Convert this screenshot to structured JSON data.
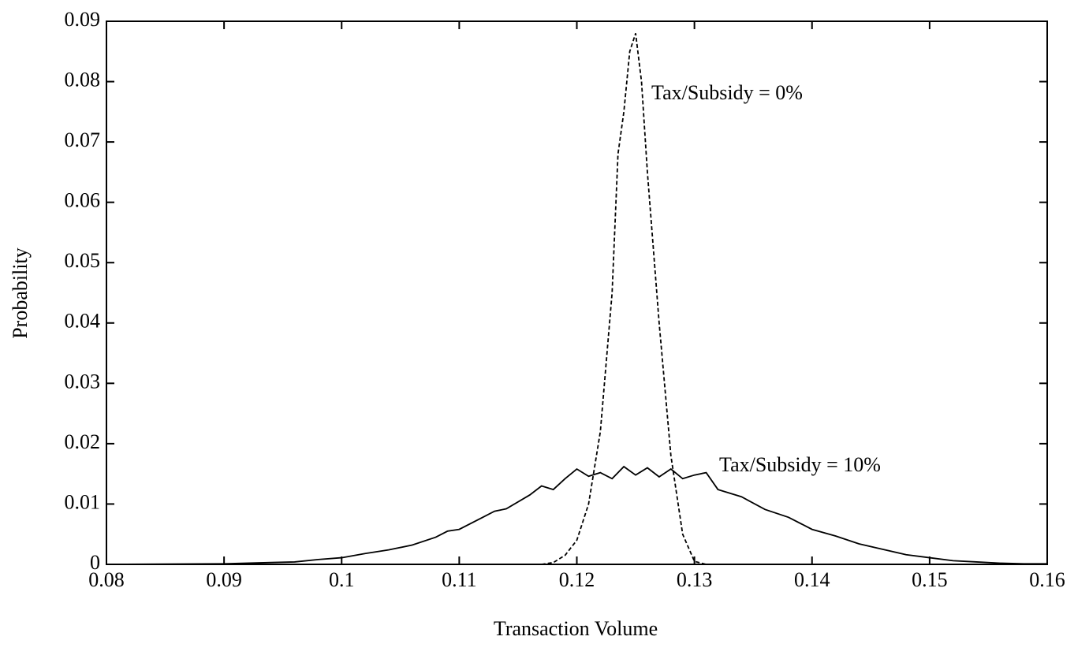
{
  "chart_data": {
    "type": "line",
    "x_label": "Transaction Volume",
    "y_label": "Probability",
    "annotations": [
      "Tax/Subsidy = 0%",
      "Tax/Subsidy = 10%"
    ],
    "xlim": [
      0.08,
      0.16
    ],
    "xticks": [
      0.08,
      0.09,
      0.1,
      0.11,
      0.12,
      0.13,
      0.14,
      0.15,
      0.16
    ],
    "ylim": [
      0,
      0.09
    ],
    "yticks": [
      0,
      0.01,
      0.02,
      0.03,
      0.04,
      0.05,
      0.06,
      0.07,
      0.08,
      0.09
    ],
    "series": [
      {
        "name": "Tax/Subsidy = 0%",
        "color": "#000000",
        "dashed": true,
        "x": [
          0.117,
          0.118,
          0.119,
          0.12,
          0.121,
          0.122,
          0.123,
          0.1235,
          0.124,
          0.1245,
          0.125,
          0.1255,
          0.126,
          0.127,
          0.128,
          0.129,
          0.13,
          0.131
        ],
        "values": [
          0,
          0.0003,
          0.0015,
          0.004,
          0.01,
          0.022,
          0.045,
          0.068,
          0.075,
          0.085,
          0.088,
          0.08,
          0.065,
          0.04,
          0.018,
          0.005,
          0.0005,
          0
        ]
      },
      {
        "name": "Tax/Subsidy = 10%",
        "color": "#000000",
        "dashed": false,
        "x": [
          0.08,
          0.09,
          0.094,
          0.096,
          0.098,
          0.1,
          0.102,
          0.104,
          0.106,
          0.108,
          0.109,
          0.11,
          0.112,
          0.113,
          0.114,
          0.116,
          0.117,
          0.118,
          0.119,
          0.12,
          0.121,
          0.122,
          0.123,
          0.124,
          0.125,
          0.126,
          0.127,
          0.128,
          0.129,
          0.13,
          0.131,
          0.132,
          0.134,
          0.136,
          0.138,
          0.14,
          0.142,
          0.144,
          0.146,
          0.148,
          0.15,
          0.152,
          0.154,
          0.156,
          0.158,
          0.16
        ],
        "values": [
          0,
          0.0001,
          0.0003,
          0.0004,
          0.0008,
          0.0011,
          0.0018,
          0.0024,
          0.0032,
          0.0045,
          0.0055,
          0.0058,
          0.0078,
          0.0088,
          0.0092,
          0.0115,
          0.013,
          0.0124,
          0.0142,
          0.0158,
          0.0146,
          0.0152,
          0.0142,
          0.0162,
          0.0148,
          0.016,
          0.0145,
          0.0158,
          0.0142,
          0.0148,
          0.0152,
          0.0124,
          0.0112,
          0.0091,
          0.0078,
          0.0058,
          0.0047,
          0.0034,
          0.0025,
          0.0016,
          0.0011,
          0.0006,
          0.0004,
          0.0002,
          0.0001,
          0.0001
        ]
      }
    ]
  }
}
